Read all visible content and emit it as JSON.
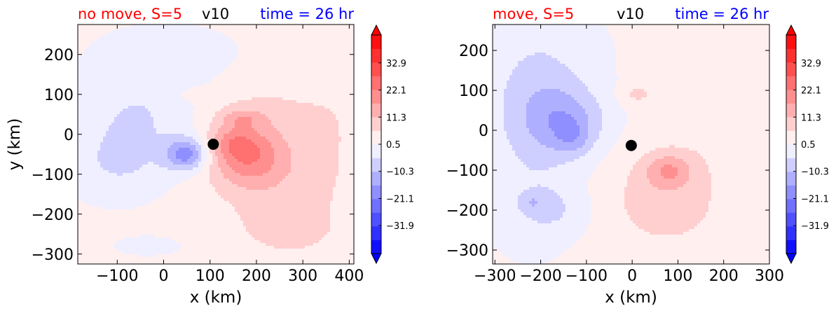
{
  "chart_data": [
    {
      "type": "heatmap",
      "title_left": "no move, S=5",
      "title_center": "v10",
      "title_right": "time = 26 hr",
      "title_colors": {
        "left": "#ff0000",
        "center": "#000000",
        "right": "#0000ff"
      },
      "xlabel": "x (km)",
      "ylabel": "y (km)",
      "xlim": [
        -185,
        410
      ],
      "ylim": [
        -325,
        275
      ],
      "xticks": [
        -100,
        0,
        100,
        200,
        300,
        400
      ],
      "yticks": [
        200,
        100,
        0,
        -100,
        -200,
        -300
      ],
      "marker": {
        "x": 107,
        "y": -25,
        "color": "#000000"
      },
      "colorbar": {
        "range": [
          -43,
          44
        ],
        "ticks": [
          32.9,
          22.1,
          11.3,
          0.5,
          -10.3,
          -21.1,
          -31.9
        ],
        "extend": "both",
        "cmap": "bwr"
      },
      "field": {
        "background": 2,
        "blobs": [
          {
            "x": 50,
            "y": -50,
            "sx": 45,
            "sy": 40,
            "v": -20
          },
          {
            "x": -50,
            "y": 50,
            "sx": 140,
            "sy": 120,
            "v": -7
          },
          {
            "x": -100,
            "y": -80,
            "sx": 110,
            "sy": 90,
            "v": -6
          },
          {
            "x": 10,
            "y": 200,
            "sx": 140,
            "sy": 70,
            "v": -5
          },
          {
            "x": -30,
            "y": -280,
            "sx": 90,
            "sy": 30,
            "v": -3
          },
          {
            "x": 180,
            "y": -60,
            "sx": 80,
            "sy": 70,
            "v": 15
          },
          {
            "x": 150,
            "y": -20,
            "sx": 55,
            "sy": 40,
            "v": 9
          },
          {
            "x": 170,
            "y": 40,
            "sx": 50,
            "sy": 25,
            "v": 8
          },
          {
            "x": 250,
            "y": -120,
            "sx": 140,
            "sy": 150,
            "v": 6
          },
          {
            "x": 200,
            "y": 50,
            "sx": 150,
            "sy": 90,
            "v": 4
          },
          {
            "x": 70,
            "y": 100,
            "sx": 35,
            "sy": 15,
            "v": 4
          },
          {
            "x": 280,
            "y": -250,
            "sx": 120,
            "sy": 70,
            "v": 3
          },
          {
            "x": 380,
            "y": 50,
            "sx": 80,
            "sy": 200,
            "v": 2
          }
        ]
      }
    },
    {
      "type": "heatmap",
      "title_left": "move, S=5",
      "title_center": "v10",
      "title_right": "time = 26 hr",
      "title_colors": {
        "left": "#ff0000",
        "center": "#000000",
        "right": "#0000ff"
      },
      "xlabel": "x (km)",
      "ylabel": "",
      "xlim": [
        -305,
        300
      ],
      "ylim": [
        -335,
        265
      ],
      "xticks": [
        -300,
        -200,
        -100,
        0,
        100,
        200,
        300
      ],
      "yticks": [
        200,
        100,
        0,
        -100,
        -200,
        -300
      ],
      "marker": {
        "x": -2,
        "y": -38,
        "color": "#000000"
      },
      "colorbar": {
        "range": [
          -43,
          44
        ],
        "ticks": [
          32.9,
          22.1,
          11.3,
          0.5,
          -10.3,
          -21.1,
          -31.9
        ],
        "extend": "both",
        "cmap": "bwr"
      },
      "field": {
        "background": 1,
        "blobs": [
          {
            "x": -140,
            "y": 20,
            "sx": 80,
            "sy": 80,
            "v": -11
          },
          {
            "x": -130,
            "y": -20,
            "sx": 35,
            "sy": 40,
            "v": -6
          },
          {
            "x": -200,
            "y": 100,
            "sx": 110,
            "sy": 160,
            "v": -7
          },
          {
            "x": -180,
            "y": -200,
            "sx": 80,
            "sy": 60,
            "v": -6
          },
          {
            "x": -220,
            "y": -180,
            "sx": 25,
            "sy": 20,
            "v": -5
          },
          {
            "x": -220,
            "y": -50,
            "sx": 90,
            "sy": 200,
            "v": -4
          },
          {
            "x": 80,
            "y": -100,
            "sx": 50,
            "sy": 40,
            "v": 11
          },
          {
            "x": 60,
            "y": -150,
            "sx": 110,
            "sy": 120,
            "v": 6
          },
          {
            "x": 10,
            "y": 90,
            "sx": 40,
            "sy": 25,
            "v": 6
          },
          {
            "x": 100,
            "y": -220,
            "sx": 160,
            "sy": 110,
            "v": 3
          },
          {
            "x": 200,
            "y": 0,
            "sx": 120,
            "sy": 150,
            "v": 3
          },
          {
            "x": 50,
            "y": 150,
            "sx": 60,
            "sy": 40,
            "v": 2
          }
        ]
      }
    }
  ]
}
